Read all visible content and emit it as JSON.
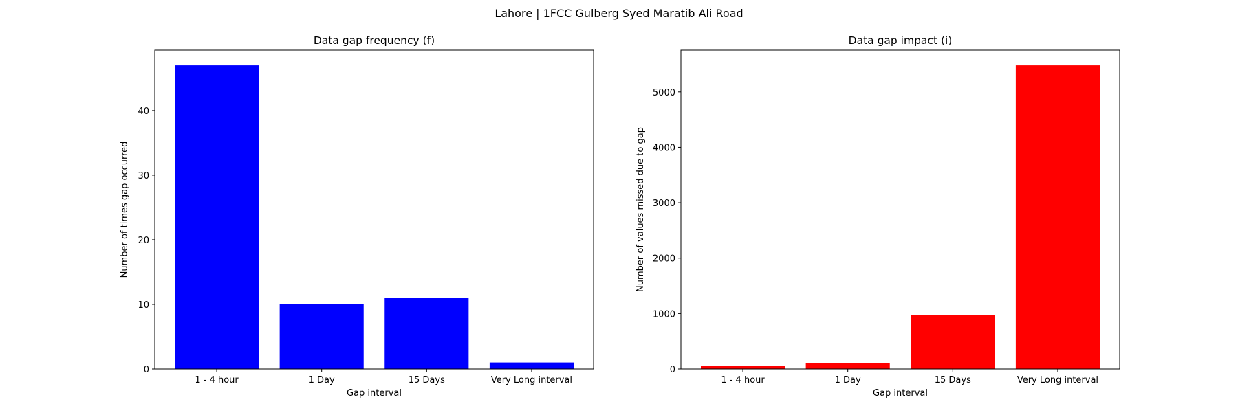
{
  "figure": {
    "suptitle": "Lahore | 1FCC Gulberg Syed Maratib Ali Road"
  },
  "chart_data": [
    {
      "type": "bar",
      "title": "Data gap frequency (f)",
      "xlabel": "Gap interval",
      "ylabel": "Number of times gap occurred",
      "categories": [
        "1 - 4 hour",
        "1 Day",
        "15 Days",
        "Very Long interval"
      ],
      "values": [
        47,
        10,
        11,
        1
      ],
      "ylim": [
        0,
        49.35
      ],
      "yticks": [
        0,
        10,
        20,
        30,
        40
      ],
      "color": "#0000ff",
      "grid": false
    },
    {
      "type": "bar",
      "title": "Data gap impact (i)",
      "xlabel": "Gap interval",
      "ylabel": "Number of values missed due to gap",
      "categories": [
        "1 - 4 hour",
        "1 Day",
        "15 Days",
        "Very Long interval"
      ],
      "values": [
        60,
        110,
        970,
        5480
      ],
      "ylim": [
        0,
        5754
      ],
      "yticks": [
        0,
        1000,
        2000,
        3000,
        4000,
        5000
      ],
      "color": "#ff0000",
      "grid": false
    }
  ]
}
